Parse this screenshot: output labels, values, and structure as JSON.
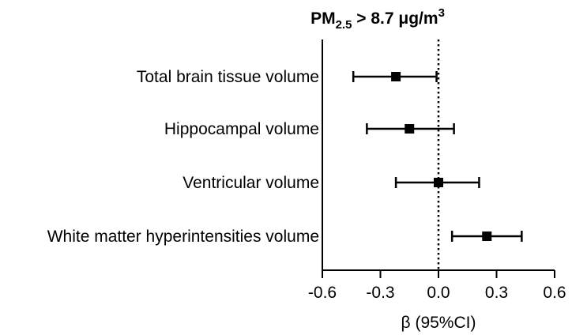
{
  "chart_data": {
    "type": "forest",
    "title": {
      "prefix": "PM",
      "subscript": "2.5",
      "middle": " > 8.7 μg/m",
      "superscript": "3"
    },
    "xlabel": "β (95%CI)",
    "xlim": [
      -0.6,
      0.6
    ],
    "xticks": [
      "-0.6",
      "-0.3",
      "0.0",
      "0.3",
      "0.6"
    ],
    "reference_line": 0.0,
    "reference_line_style": "dotted",
    "marker": "square",
    "colors": {
      "marks": "#000000",
      "axis": "#000000"
    },
    "rows": [
      {
        "label": "Total brain tissue volume",
        "estimate": -0.22,
        "lower": -0.44,
        "upper": -0.01
      },
      {
        "label": "Hippocampal volume",
        "estimate": -0.15,
        "lower": -0.37,
        "upper": 0.08
      },
      {
        "label": "Ventricular volume",
        "estimate": 0.0,
        "lower": -0.22,
        "upper": 0.21
      },
      {
        "label": "White matter hyperintensities volume",
        "estimate": 0.25,
        "lower": 0.07,
        "upper": 0.43
      }
    ]
  }
}
